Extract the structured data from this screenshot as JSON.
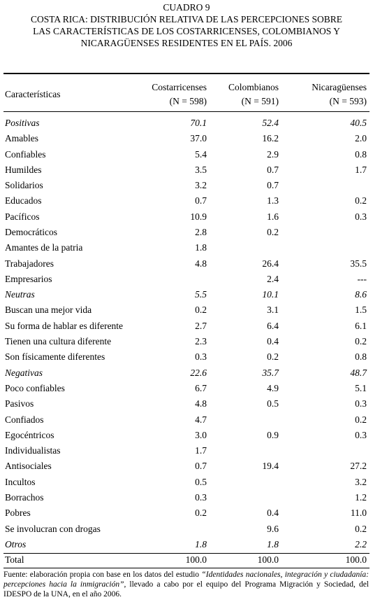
{
  "header": {
    "cuadro": "CUADRO 9",
    "title_lines": [
      "COSTA RICA: DISTRIBUCIÓN RELATIVA DE LAS PERCEPCIONES SOBRE",
      "LAS CARACTERÍSTICAS DE LOS COSTARRICENSES, COLOMBIANOS Y",
      "NICARAGÜENSES RESIDENTES EN EL PAÍS. 2006"
    ]
  },
  "table": {
    "label_header": "Características",
    "columns": [
      {
        "name": "Costarricenses",
        "n": "(N = 598)"
      },
      {
        "name": "Colombianos",
        "n": "(N = 591)"
      },
      {
        "name": "Nicaragüenses",
        "n": "(N = 593)"
      }
    ],
    "rows": [
      {
        "label": "Positivas",
        "italic": true,
        "values": [
          "70.1",
          "52.4",
          "40.5"
        ]
      },
      {
        "label": "Amables",
        "values": [
          "37.0",
          "16.2",
          "2.0"
        ]
      },
      {
        "label": "Confiables",
        "values": [
          "5.4",
          "2.9",
          "0.8"
        ]
      },
      {
        "label": "Humildes",
        "values": [
          "3.5",
          "0.7",
          "1.7"
        ]
      },
      {
        "label": "Solidarios",
        "values": [
          "3.2",
          "0.7",
          null
        ]
      },
      {
        "label": "Educados",
        "values": [
          "0.7",
          "1.3",
          "0.2"
        ]
      },
      {
        "label": "Pacíficos",
        "values": [
          "10.9",
          "1.6",
          "0.3"
        ]
      },
      {
        "label": "Democráticos",
        "values": [
          "2.8",
          "0.2",
          null
        ]
      },
      {
        "label": "Amantes de la patria",
        "values": [
          "1.8",
          null,
          null
        ]
      },
      {
        "label": "Trabajadores",
        "values": [
          "4.8",
          "26.4",
          "35.5"
        ]
      },
      {
        "label": "Empresarios",
        "values": [
          null,
          "2.4",
          "---"
        ]
      },
      {
        "label": "Neutras",
        "italic": true,
        "values": [
          "5.5",
          "10.1",
          "8.6"
        ]
      },
      {
        "label": "Buscan una mejor vida",
        "values": [
          "0.2",
          "3.1",
          "1.5"
        ]
      },
      {
        "label": "Su forma de hablar es diferente",
        "values": [
          "2.7",
          "6.4",
          "6.1"
        ]
      },
      {
        "label": "Tienen una cultura diferente",
        "values": [
          "2.3",
          "0.4",
          "0.2"
        ]
      },
      {
        "label": "Son físicamente diferentes",
        "values": [
          "0.3",
          "0.2",
          "0.8"
        ]
      },
      {
        "label": "Negativas",
        "italic": true,
        "values": [
          "22.6",
          "35.7",
          "48.7"
        ]
      },
      {
        "label": "Poco confiables",
        "values": [
          "6.7",
          "4.9",
          "5.1"
        ]
      },
      {
        "label": "Pasivos",
        "values": [
          "4.8",
          "0.5",
          "0.3"
        ]
      },
      {
        "label": "Confiados",
        "values": [
          "4.7",
          null,
          "0.2"
        ]
      },
      {
        "label": "Egocéntricos",
        "values": [
          "3.0",
          "0.9",
          "0.3"
        ]
      },
      {
        "label": "Individualistas",
        "values": [
          "1.7",
          null,
          null
        ]
      },
      {
        "label": "Antisociales",
        "values": [
          "0.7",
          "19.4",
          "27.2"
        ]
      },
      {
        "label": "Incultos",
        "values": [
          "0.5",
          null,
          "3.2"
        ]
      },
      {
        "label": "Borrachos",
        "values": [
          "0.3",
          null,
          "1.2"
        ]
      },
      {
        "label": "Pobres",
        "values": [
          "0.2",
          "0.4",
          "11.0"
        ]
      },
      {
        "label": "Se involucran con drogas",
        "values": [
          null,
          "9.6",
          "0.2"
        ]
      },
      {
        "label": "Otros",
        "italic": true,
        "values": [
          "1.8",
          "1.8",
          "2.2"
        ]
      },
      {
        "label": "Total",
        "values": [
          "100.0",
          "100.0",
          "100.0"
        ]
      }
    ]
  },
  "footnote": {
    "before": "Fuente: elaboración propia con base en los datos del estudio ",
    "study": "“Identidades nacionales, integración y ciudadanía: percepciones hacia la inmigración”",
    "after": ", llevado a cabo por el equipo del Programa Migración y Sociedad, del IDESPO de la UNA, en el año 2006."
  }
}
